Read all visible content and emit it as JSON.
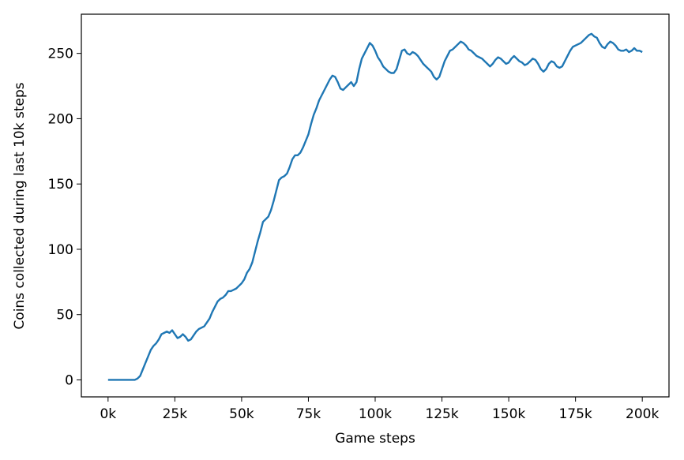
{
  "chart_data": {
    "type": "line",
    "title": "",
    "xlabel": "Game steps",
    "ylabel": "Coins collected during last 10k steps",
    "xlim": [
      -10000,
      210000
    ],
    "ylim": [
      -13,
      280
    ],
    "xticks": [
      {
        "value": 0,
        "label": "0k"
      },
      {
        "value": 25000,
        "label": "25k"
      },
      {
        "value": 50000,
        "label": "50k"
      },
      {
        "value": 75000,
        "label": "75k"
      },
      {
        "value": 100000,
        "label": "100k"
      },
      {
        "value": 125000,
        "label": "125k"
      },
      {
        "value": 150000,
        "label": "150k"
      },
      {
        "value": 175000,
        "label": "175k"
      },
      {
        "value": 200000,
        "label": "200k"
      }
    ],
    "yticks": [
      {
        "value": 0,
        "label": "0"
      },
      {
        "value": 50,
        "label": "50"
      },
      {
        "value": 100,
        "label": "100"
      },
      {
        "value": 150,
        "label": "150"
      },
      {
        "value": 200,
        "label": "200"
      },
      {
        "value": 250,
        "label": "250"
      }
    ],
    "grid": false,
    "legend": "none",
    "series": [
      {
        "color": "#1f77b4",
        "x": [
          0,
          2000,
          4000,
          6000,
          8000,
          10000,
          11000,
          12000,
          13000,
          14000,
          15000,
          16000,
          17000,
          18000,
          19000,
          20000,
          21000,
          22000,
          23000,
          24000,
          25000,
          26000,
          27000,
          28000,
          29000,
          30000,
          31000,
          32000,
          33000,
          34000,
          35000,
          36000,
          37000,
          38000,
          39000,
          40000,
          41000,
          42000,
          43000,
          44000,
          45000,
          46000,
          47000,
          48000,
          49000,
          50000,
          51000,
          52000,
          53000,
          54000,
          55000,
          56000,
          57000,
          58000,
          59000,
          60000,
          61000,
          62000,
          63000,
          64000,
          65000,
          66000,
          67000,
          68000,
          69000,
          70000,
          71000,
          72000,
          73000,
          74000,
          75000,
          76000,
          77000,
          78000,
          79000,
          80000,
          81000,
          82000,
          83000,
          84000,
          85000,
          86000,
          87000,
          88000,
          89000,
          90000,
          91000,
          92000,
          93000,
          94000,
          95000,
          96000,
          97000,
          98000,
          99000,
          100000,
          101000,
          102000,
          103000,
          104000,
          105000,
          106000,
          107000,
          108000,
          109000,
          110000,
          111000,
          112000,
          113000,
          114000,
          115000,
          116000,
          117000,
          118000,
          119000,
          120000,
          121000,
          122000,
          123000,
          124000,
          125000,
          126000,
          127000,
          128000,
          129000,
          130000,
          131000,
          132000,
          133000,
          134000,
          135000,
          136000,
          137000,
          138000,
          139000,
          140000,
          141000,
          142000,
          143000,
          144000,
          145000,
          146000,
          147000,
          148000,
          149000,
          150000,
          151000,
          152000,
          153000,
          154000,
          155000,
          156000,
          157000,
          158000,
          159000,
          160000,
          161000,
          162000,
          163000,
          164000,
          165000,
          166000,
          167000,
          168000,
          169000,
          170000,
          171000,
          172000,
          173000,
          174000,
          175000,
          176000,
          177000,
          178000,
          179000,
          180000,
          181000,
          182000,
          183000,
          184000,
          185000,
          186000,
          187000,
          188000,
          189000,
          190000,
          191000,
          192000,
          193000,
          194000,
          195000,
          196000,
          197000,
          198000,
          199000,
          200000
        ],
        "y": [
          0,
          0,
          0,
          0,
          0,
          0,
          1,
          3,
          8,
          13,
          18,
          23,
          26,
          28,
          31,
          35,
          36,
          37,
          36,
          38,
          35,
          32,
          33,
          35,
          33,
          30,
          31,
          34,
          37,
          39,
          40,
          41,
          44,
          47,
          52,
          56,
          60,
          62,
          63,
          65,
          68,
          68,
          69,
          70,
          72,
          74,
          77,
          82,
          85,
          90,
          98,
          106,
          113,
          121,
          123,
          125,
          130,
          137,
          145,
          153,
          155,
          156,
          158,
          163,
          169,
          172,
          172,
          174,
          178,
          183,
          188,
          196,
          203,
          208,
          214,
          218,
          222,
          226,
          230,
          233,
          232,
          228,
          223,
          222,
          224,
          226,
          228,
          225,
          228,
          238,
          246,
          250,
          254,
          258,
          256,
          252,
          247,
          244,
          240,
          238,
          236,
          235,
          235,
          238,
          245,
          252,
          253,
          250,
          249,
          251,
          250,
          248,
          245,
          242,
          240,
          238,
          236,
          232,
          230,
          232,
          238,
          244,
          248,
          252,
          253,
          255,
          257,
          259,
          258,
          256,
          253,
          252,
          250,
          248,
          247,
          246,
          244,
          242,
          240,
          242,
          245,
          247,
          246,
          244,
          242,
          243,
          246,
          248,
          246,
          244,
          243,
          241,
          242,
          244,
          246,
          245,
          242,
          238,
          236,
          238,
          242,
          244,
          243,
          240,
          239,
          240,
          244,
          248,
          252,
          255,
          256,
          257,
          258,
          260,
          262,
          264,
          265,
          263,
          262,
          258,
          255,
          254,
          257,
          259,
          258,
          256,
          253,
          252,
          252,
          253,
          251,
          252,
          254,
          252,
          252,
          251
        ]
      }
    ]
  }
}
